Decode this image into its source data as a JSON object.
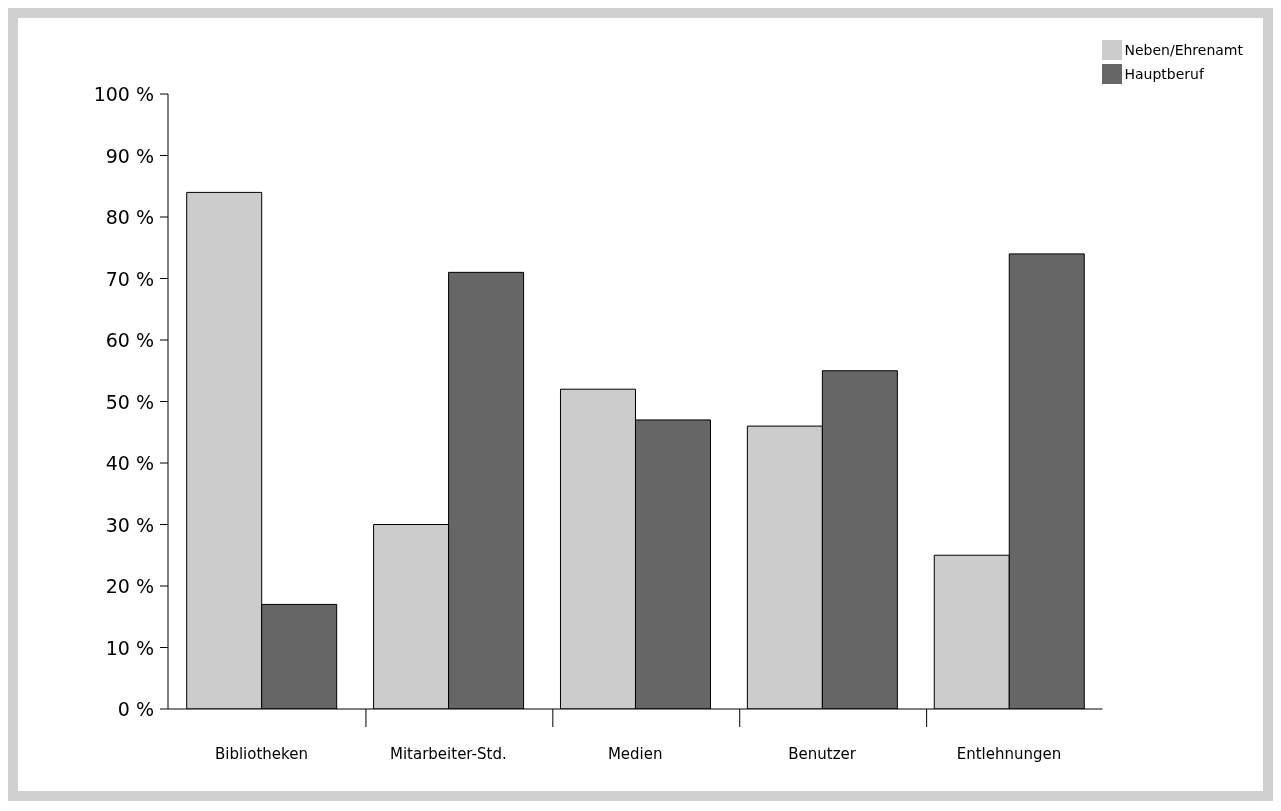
{
  "chart_data": {
    "type": "bar",
    "categories": [
      "Bibliotheken",
      "Mitarbeiter-Std.",
      "Medien",
      "Benutzer",
      "Entlehnungen"
    ],
    "series": [
      {
        "name": "Neben/Ehrenamt",
        "color": "#cccccc",
        "values": [
          84,
          30,
          52,
          46,
          25
        ]
      },
      {
        "name": "Hauptberuf",
        "color": "#666666",
        "values": [
          17,
          71,
          47,
          55,
          74
        ]
      }
    ],
    "ylim": [
      0,
      100
    ],
    "yticks": [
      {
        "value": 0,
        "label": "0 %"
      },
      {
        "value": 10,
        "label": "10 %"
      },
      {
        "value": 20,
        "label": "20 %"
      },
      {
        "value": 30,
        "label": "30 %"
      },
      {
        "value": 40,
        "label": "40 %"
      },
      {
        "value": 50,
        "label": "50 %"
      },
      {
        "value": 60,
        "label": "60 %"
      },
      {
        "value": 70,
        "label": "70 %"
      },
      {
        "value": 80,
        "label": "80 %"
      },
      {
        "value": 90,
        "label": "90 %"
      },
      {
        "value": 100,
        "label": "100 %"
      }
    ],
    "grid": false,
    "legend": "top right"
  }
}
